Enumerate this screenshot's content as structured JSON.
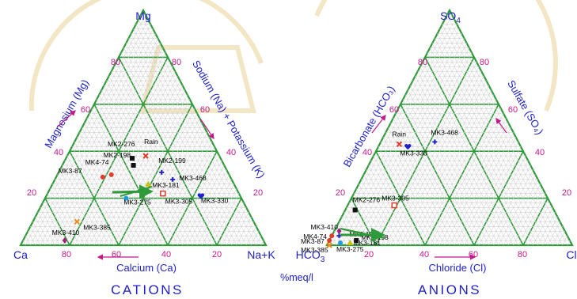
{
  "cation": {
    "apex_top": "Mg",
    "apex_left": "Ca",
    "apex_right": "Na+K",
    "left_side_label": "Magnesium (Mg)",
    "right_side_label": "Sodium (Na) + Potassium (K)",
    "bottom_label": "Calcium (Ca)",
    "title": "CATIONS",
    "ticks_left": [
      "20",
      "40",
      "60",
      "80"
    ],
    "ticks_right": [
      "80",
      "60",
      "40",
      "20"
    ],
    "ticks_bottom": [
      "80",
      "60",
      "40",
      "20"
    ],
    "points": [
      {
        "label": "MK4-74",
        "ca": 48,
        "mg": 30,
        "color": "#e33a2a",
        "marker": "circle"
      },
      {
        "label": "MK3-87",
        "ca": 52,
        "mg": 29,
        "color": "#e33a2a",
        "marker": "circle"
      },
      {
        "label": "MK2-198",
        "ca": 37,
        "mg": 34,
        "color": "#111111",
        "marker": "square"
      },
      {
        "label": "MK2-276",
        "ca": 36,
        "mg": 37,
        "color": "#111111",
        "marker": "square"
      },
      {
        "label": "Rain",
        "ca": 30,
        "mg": 38,
        "color": "#e33a2a",
        "marker": "cross"
      },
      {
        "label": "MK2-199",
        "ca": 27,
        "mg": 31,
        "color": "#1f22c8",
        "marker": "plus"
      },
      {
        "label": "MK3-468",
        "ca": 24,
        "mg": 28,
        "color": "#1f22c8",
        "marker": "plus"
      },
      {
        "label": "MK3-181",
        "ca": 35,
        "mg": 26,
        "color": "#c4c400",
        "marker": "triangle"
      },
      {
        "label": "MK3-275",
        "ca": 47,
        "mg": 20,
        "color": "#1e9ae0",
        "marker": "circle"
      },
      {
        "label": "MK3-305",
        "ca": 31,
        "mg": 22,
        "color": "#e33a2a",
        "marker": "open-square"
      },
      {
        "label": "MK3-330",
        "ca": 16,
        "mg": 21,
        "color": "#1f22c8",
        "marker": "heart"
      },
      {
        "label": "MK3-410",
        "ca": 81,
        "mg": 2,
        "color": "#a0207a",
        "marker": "diamond"
      },
      {
        "label": "MK3-385",
        "ca": 72,
        "mg": 10,
        "color": "#f08a1c",
        "marker": "cross"
      }
    ]
  },
  "anion": {
    "apex_top": "SO",
    "apex_top_sub": "4",
    "apex_left": "HCO",
    "apex_left_sub": "3",
    "apex_right": "Cl",
    "left_side_label": "Bicarbonate (HCO₃)",
    "right_side_label": "Sulfate (SO₄)",
    "bottom_label": "Chloride (Cl)",
    "title": "ANIONS",
    "ticks_left": [
      "20",
      "40",
      "60",
      "80"
    ],
    "ticks_right": [
      "80",
      "60",
      "40",
      "20"
    ],
    "ticks_bottom": [
      "20",
      "40",
      "60",
      "80"
    ],
    "points": [
      {
        "label": "Rain",
        "cl": 8,
        "so4": 43,
        "color": "#e33a2a",
        "marker": "cross"
      },
      {
        "label": "MK3-468",
        "cl": 22,
        "so4": 44,
        "color": "#1f22c8",
        "marker": "plus"
      },
      {
        "label": "MK3-330",
        "cl": 12,
        "so4": 42,
        "color": "#1f22c8",
        "marker": "heart"
      },
      {
        "label": "MK3-305",
        "cl": 19,
        "so4": 17,
        "color": "#e33a2a",
        "marker": "open-square"
      },
      {
        "label": "MK2-276",
        "cl": 4,
        "so4": 15,
        "color": "#111111",
        "marker": "square"
      },
      {
        "label": "MK3-410",
        "cl": 2,
        "so4": 6,
        "color": "#a0207a",
        "marker": "diamond"
      },
      {
        "label": "MK2-199",
        "cl": 3,
        "so4": 4,
        "color": "#1f22c8",
        "marker": "plus"
      },
      {
        "label": "MK4-74",
        "cl": 0,
        "so4": 4,
        "color": "#e33a2a",
        "marker": "circle"
      },
      {
        "label": "MK3-87",
        "cl": 0,
        "so4": 2,
        "color": "#e33a2a",
        "marker": "circle"
      },
      {
        "label": "MK3-385",
        "cl": 1,
        "so4": 0,
        "color": "#f08a1c",
        "marker": "cross"
      },
      {
        "label": "MK3-181",
        "cl": 9,
        "so4": 1,
        "color": "#c4c400",
        "marker": "triangle"
      },
      {
        "label": "MK2-198",
        "cl": 11,
        "so4": 2,
        "color": "#111111",
        "marker": "square"
      },
      {
        "label": "MK3-275",
        "cl": 5,
        "so4": 1,
        "color": "#1e9ae0",
        "marker": "circle"
      }
    ]
  },
  "unit_label": "%meq/l"
}
